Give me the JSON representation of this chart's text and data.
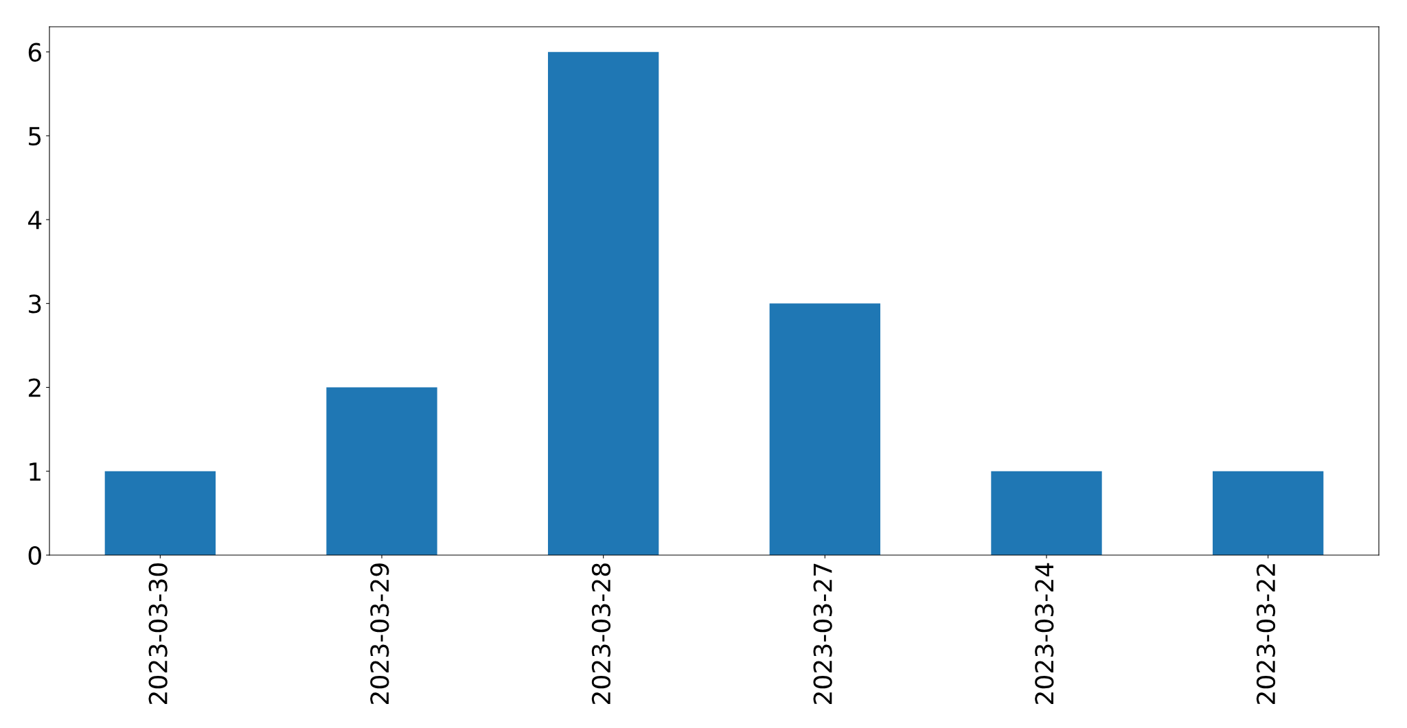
{
  "chart_data": {
    "type": "bar",
    "categories": [
      "2023-03-30",
      "2023-03-29",
      "2023-03-28",
      "2023-03-27",
      "2023-03-24",
      "2023-03-22"
    ],
    "values": [
      1,
      2,
      6,
      3,
      1,
      1
    ],
    "color": "#1f77b4",
    "ylim": [
      0,
      6.3
    ],
    "yticks": [
      0,
      1,
      2,
      3,
      4,
      5,
      6
    ]
  }
}
